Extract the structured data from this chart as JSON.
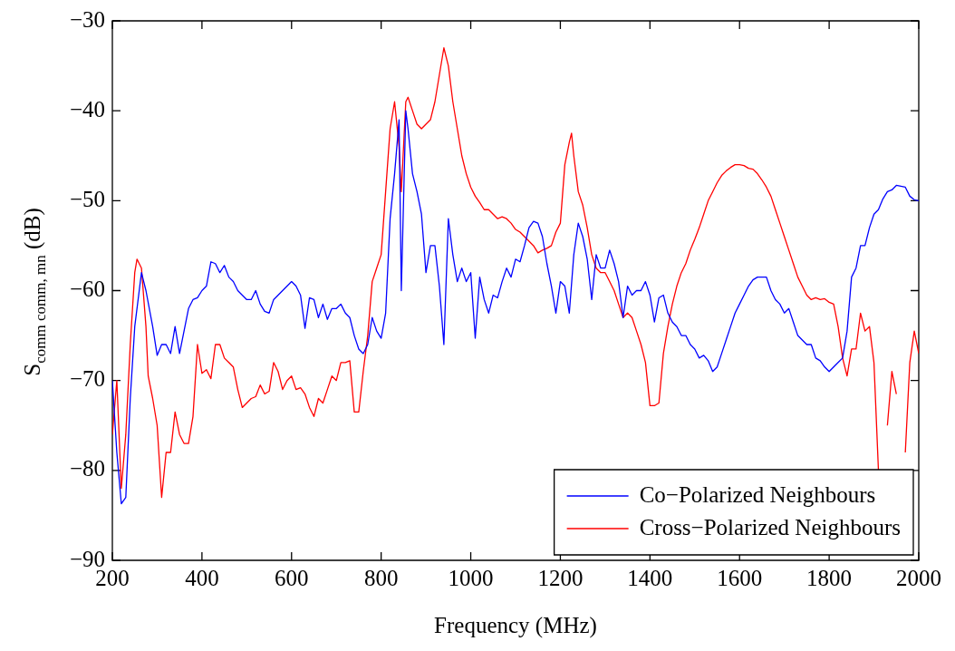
{
  "chart_data": {
    "type": "line",
    "xlabel": "Frequency (MHz)",
    "ylabel": "S$_{comm comm, mn}$ (dB)",
    "xlim": [
      200,
      2000
    ],
    "xticks": [
      200,
      400,
      600,
      800,
      1000,
      1200,
      1400,
      1600,
      1800,
      2000
    ],
    "ylim": [
      -90,
      -30
    ],
    "yticks": [
      -90,
      -80,
      -70,
      -60,
      -50,
      -40,
      -30
    ],
    "grid": false,
    "legend": "bottom right",
    "marker": "none",
    "line_style": "solid",
    "series": [
      {
        "name": "Co−Polarized Neighbours",
        "color": "#0000ff",
        "x": [
          200,
          210,
          220,
          230,
          240,
          250,
          260,
          265,
          275,
          290,
          300,
          310,
          320,
          330,
          340,
          350,
          370,
          380,
          390,
          400,
          410,
          420,
          430,
          440,
          450,
          460,
          470,
          480,
          490,
          500,
          510,
          520,
          530,
          540,
          550,
          560,
          570,
          580,
          590,
          600,
          610,
          620,
          630,
          640,
          650,
          660,
          670,
          680,
          690,
          700,
          710,
          720,
          730,
          740,
          750,
          760,
          770,
          780,
          790,
          800,
          810,
          820,
          830,
          840,
          845,
          855,
          860,
          870,
          880,
          890,
          900,
          910,
          920,
          930,
          940,
          950,
          960,
          970,
          980,
          990,
          1000,
          1010,
          1020,
          1030,
          1040,
          1050,
          1060,
          1070,
          1080,
          1090,
          1100,
          1110,
          1120,
          1130,
          1140,
          1150,
          1160,
          1170,
          1180,
          1190,
          1200,
          1210,
          1220,
          1230,
          1240,
          1250,
          1260,
          1270,
          1280,
          1290,
          1300,
          1310,
          1320,
          1330,
          1340,
          1350,
          1360,
          1370,
          1380,
          1390,
          1400,
          1410,
          1420,
          1430,
          1440,
          1450,
          1460,
          1470,
          1480,
          1490,
          1500,
          1510,
          1520,
          1530,
          1540,
          1550,
          1560,
          1570,
          1580,
          1590,
          1600,
          1610,
          1620,
          1630,
          1640,
          1660,
          1670,
          1680,
          1690,
          1700,
          1710,
          1720,
          1730,
          1740,
          1750,
          1760,
          1770,
          1780,
          1790,
          1800,
          1810,
          1820,
          1830,
          1840,
          1850,
          1860,
          1870,
          1880,
          1890,
          1900,
          1910,
          1920,
          1930,
          1940,
          1950,
          1960,
          1970,
          1980,
          1990,
          2000
        ],
        "values": [
          -70,
          -78,
          -83.7,
          -83,
          -72,
          -64,
          -60,
          -58,
          -60,
          -64,
          -67.2,
          -66,
          -66,
          -67,
          -64,
          -67,
          -62,
          -61,
          -60.8,
          -60,
          -59.5,
          -56.8,
          -57,
          -58,
          -57.2,
          -58.5,
          -59,
          -60,
          -60.5,
          -61,
          -61,
          -60,
          -61.5,
          -62.3,
          -62.5,
          -61,
          -60.5,
          -60,
          -59.5,
          -59,
          -59.5,
          -60.5,
          -64.2,
          -60.8,
          -61,
          -63,
          -61.5,
          -63.2,
          -62,
          -62,
          -61.5,
          -62.5,
          -63,
          -65,
          -66.5,
          -67,
          -66,
          -63,
          -64.5,
          -65.3,
          -62.5,
          -52,
          -47,
          -41,
          -60,
          -40,
          -42,
          -47,
          -49,
          -51.5,
          -58,
          -55,
          -55,
          -59.5,
          -66,
          -52,
          -56,
          -59,
          -57.5,
          -59,
          -58,
          -65.3,
          -58.5,
          -61,
          -62.5,
          -60.5,
          -60.8,
          -59,
          -57.5,
          -58.5,
          -56.5,
          -56.8,
          -55,
          -53,
          -52.3,
          -52.5,
          -54,
          -57,
          -59.5,
          -62.5,
          -59,
          -59.5,
          -62.5,
          -56,
          -52.5,
          -54,
          -56.5,
          -61,
          -56,
          -57.5,
          -57.5,
          -55.5,
          -57,
          -59,
          -63,
          -59.5,
          -60.5,
          -60,
          -60,
          -59,
          -60.5,
          -63.5,
          -60.8,
          -60.5,
          -62.5,
          -63.5,
          -64,
          -65,
          -65,
          -66,
          -66.5,
          -67.5,
          -67.2,
          -67.8,
          -69,
          -68.5,
          -67,
          -65.5,
          -64,
          -62.5,
          -61.5,
          -60.5,
          -59.5,
          -58.8,
          -58.5,
          -58.5,
          -60,
          -61,
          -61.5,
          -62.5,
          -62,
          -63.5,
          -65,
          -65.5,
          -66,
          -66,
          -67.5,
          -67.8,
          -68.5,
          -69,
          -68.5,
          -68,
          -67.5,
          -64.5,
          -58.5,
          -57.5,
          -55,
          -55,
          -53,
          -51.5,
          -51,
          -49.8,
          -49,
          -48.8,
          -48.3,
          -48.4,
          -48.5,
          -49.5,
          -49.9,
          -50
        ]
      },
      {
        "name": "Cross−Polarized Neighbours",
        "color": "#ff0000",
        "x": [
          200,
          210,
          220,
          230,
          240,
          250,
          255,
          265,
          275,
          280,
          290,
          300,
          310,
          320,
          330,
          340,
          350,
          360,
          370,
          380,
          390,
          400,
          410,
          420,
          430,
          440,
          450,
          460,
          470,
          480,
          490,
          500,
          510,
          520,
          530,
          540,
          550,
          560,
          570,
          580,
          590,
          600,
          610,
          620,
          630,
          640,
          650,
          660,
          670,
          680,
          690,
          700,
          710,
          720,
          730,
          740,
          750,
          760,
          770,
          780,
          790,
          800,
          810,
          820,
          830,
          840,
          845,
          855,
          860,
          870,
          880,
          890,
          900,
          910,
          920,
          930,
          940,
          950,
          960,
          970,
          980,
          990,
          1000,
          1010,
          1020,
          1030,
          1040,
          1050,
          1060,
          1070,
          1080,
          1090,
          1100,
          1110,
          1120,
          1130,
          1140,
          1150,
          1160,
          1170,
          1180,
          1190,
          1200,
          1210,
          1220,
          1225,
          1230,
          1240,
          1250,
          1260,
          1270,
          1280,
          1290,
          1300,
          1310,
          1320,
          1330,
          1340,
          1350,
          1360,
          1370,
          1380,
          1390,
          1400,
          1410,
          1420,
          1430,
          1440,
          1450,
          1460,
          1470,
          1480,
          1490,
          1500,
          1510,
          1520,
          1530,
          1540,
          1550,
          1560,
          1570,
          1580,
          1590,
          1600,
          1610,
          1620,
          1630,
          1640,
          1650,
          1660,
          1670,
          1680,
          1690,
          1700,
          1710,
          1720,
          1730,
          1740,
          1750,
          1760,
          1770,
          1780,
          1790,
          1800,
          1810,
          1820,
          1830,
          1840,
          1850,
          1860,
          1870,
          1880,
          1890,
          1900,
          1910,
          1920,
          1930,
          1940,
          1950,
          1960,
          1970,
          1980,
          1990,
          2000
        ],
        "values": [
          -76,
          -70,
          -82,
          -76,
          -66,
          -58,
          -56.5,
          -57.5,
          -64,
          -69.5,
          -72,
          -75,
          -83,
          -78,
          -78,
          -73.5,
          -76,
          -77,
          -77,
          -74,
          -66,
          -69.2,
          -68.8,
          -69.8,
          -66,
          -66,
          -67.5,
          -68,
          -68.5,
          -71,
          -73,
          -72.5,
          -72,
          -71.8,
          -70.5,
          -71.5,
          -71.2,
          -68,
          -69,
          -71,
          -70,
          -69.5,
          -71,
          -70.8,
          -71.5,
          -73,
          -74,
          -72,
          -72.5,
          -71,
          -69.5,
          -70,
          -68,
          -68,
          -67.8,
          -73.5,
          -73.5,
          -69,
          -65,
          -59,
          -57.5,
          -56,
          -49,
          -42,
          -39,
          -44,
          -49,
          -39,
          -38.5,
          -40,
          -41.5,
          -42,
          -41.5,
          -41,
          -39,
          -36,
          -33,
          -35,
          -39,
          -42,
          -45,
          -47,
          -48.5,
          -49.5,
          -50.2,
          -51,
          -51,
          -51.5,
          -52,
          -51.8,
          -52,
          -52.5,
          -53.2,
          -53.5,
          -54,
          -54.5,
          -55,
          -55.8,
          -55.5,
          -55.3,
          -55,
          -53.5,
          -52.5,
          -46,
          -43.5,
          -42.5,
          -45,
          -49,
          -50.5,
          -53,
          -56,
          -57.5,
          -58,
          -58,
          -59,
          -60,
          -61.5,
          -63,
          -62.5,
          -63,
          -64.5,
          -66,
          -68,
          -72.8,
          -72.8,
          -72.5,
          -67,
          -64,
          -61.5,
          -59.5,
          -58,
          -57,
          -55.5,
          -54.3,
          -53,
          -51.5,
          -50,
          -49,
          -48,
          -47.2,
          -46.7,
          -46.3,
          -46,
          -46,
          -46.1,
          -46.4,
          -46.5,
          -47,
          -47.7,
          -48.5,
          -49.5,
          -51,
          -52.5,
          -54,
          -55.5,
          -57,
          -58.5,
          -59.5,
          -60.5,
          -61,
          -60.8,
          -61,
          -60.9,
          -61.3,
          -61.5,
          -64,
          -67.5,
          -69.5,
          -66.5,
          -66.5,
          -62.5,
          -64.5,
          -64,
          -68,
          -80,
          null,
          -75,
          -69,
          -71.5,
          null,
          -78,
          -68,
          -64.5,
          -67
        ]
      }
    ]
  }
}
